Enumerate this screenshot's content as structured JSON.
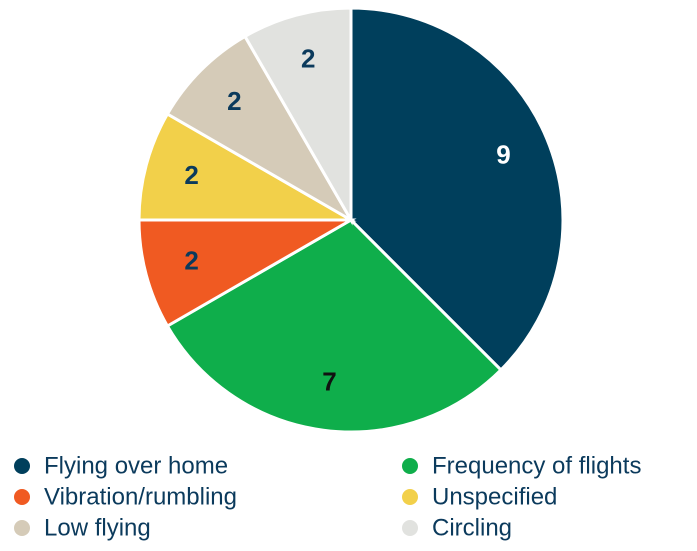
{
  "chart_data": {
    "type": "pie",
    "categories": [
      "Flying over home",
      "Frequency of flights",
      "Vibration/rumbling",
      "Unspecified",
      "Low flying",
      "Circling"
    ],
    "values": [
      9,
      7,
      2,
      2,
      2,
      2
    ],
    "colors": [
      "#003f5c",
      "#0fae4b",
      "#f05a22",
      "#f2d04a",
      "#d5cbb8",
      "#e1e2df"
    ],
    "legend": "bottom"
  }
}
